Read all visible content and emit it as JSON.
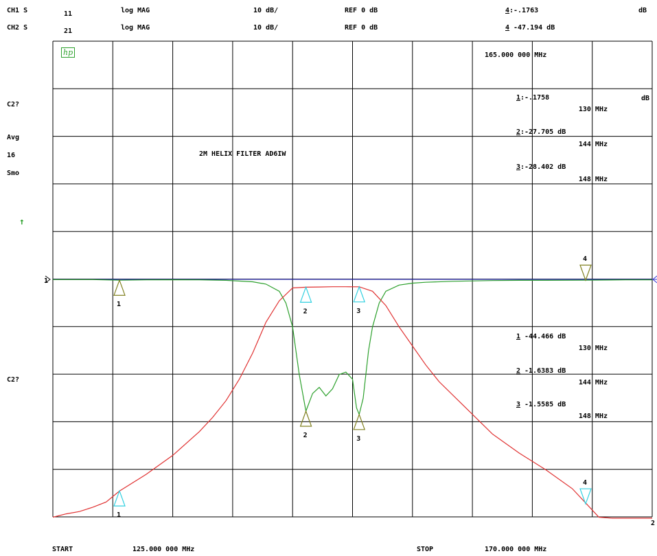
{
  "header": {
    "ch1_label": "CH1 S",
    "ch1_param": "11",
    "ch1_format": "log MAG",
    "ch1_scale": "10 dB/",
    "ch1_ref": "REF 0 dB",
    "ch1_marker_num": "4",
    "ch1_marker_val": ":-.1763",
    "ch1_unit": "dB",
    "ch2_label": "CH2 S",
    "ch2_param": "21",
    "ch2_format": "log MAG",
    "ch2_scale": "10 dB/",
    "ch2_ref": "REF 0 dB",
    "ch2_marker_num": "4",
    "ch2_marker_val": " -47.194 dB"
  },
  "left": {
    "c2q_top": "C2?",
    "avg": "Avg",
    "avg_n": "16",
    "smo": "Smo",
    "arrow": "↑",
    "c2q_bottom": "C2?"
  },
  "logo": "hp",
  "annotations": {
    "marker4_freq": "165.000 000 MHz",
    "title": "2M HELIX FILTER AD6IW",
    "dB_right": "dB",
    "ch1_m1_num": "1",
    "ch1_m1_val": ":-.1758",
    "ch1_m1_freq": "130 MHz",
    "ch1_m2_num": "2",
    "ch1_m2_val": ":-27.705 dB",
    "ch1_m2_freq": "144 MHz",
    "ch1_m3_num": "3",
    "ch1_m3_val": ":-28.402 dB",
    "ch1_m3_freq": "148 MHz",
    "ch2_m1_num": "1",
    "ch2_m1_val": " -44.466 dB",
    "ch2_m1_freq": "130 MHz",
    "ch2_m2_num": "2",
    "ch2_m2_val": " -1.6383 dB",
    "ch2_m2_freq": "144 MHz",
    "ch2_m3_num": "3",
    "ch2_m3_val": " -1.5585 dB",
    "ch2_m3_freq": "148 MHz"
  },
  "footer": {
    "start_label": "START",
    "start_value": "125.000 000 MHz",
    "stop_label": "STOP",
    "stop_value": "170.000 000 MHz"
  },
  "colors": {
    "grid": "#000000",
    "s11": "#2ca02c",
    "s21": "#e03030",
    "ref_line": "#3030d0",
    "marker_s11": "#808020",
    "marker_s21": "#30d0e0",
    "logo": "#2ca02c"
  },
  "chart_data": {
    "type": "line",
    "title": "2M HELIX FILTER AD6IW",
    "xlim": [
      125,
      170
    ],
    "ylim": [
      -50,
      0
    ],
    "x_divisions": 10,
    "y_divisions": 10,
    "reference_level_dB": 0,
    "series": [
      {
        "name": "S11",
        "x": [
          125,
          128,
          130,
          132,
          134,
          136,
          138,
          140,
          141,
          142,
          142.5,
          143,
          143.5,
          144,
          144.5,
          145,
          145.5,
          146,
          146.5,
          147,
          147.5,
          147.8,
          148,
          148.3,
          148.7,
          149,
          149.5,
          150,
          151,
          152,
          153,
          155,
          158,
          160,
          162,
          165,
          168,
          170
        ],
        "values": [
          -0.05,
          -0.05,
          -0.18,
          -0.1,
          -0.08,
          -0.1,
          -0.2,
          -0.5,
          -1.0,
          -2.5,
          -5,
          -10,
          -20,
          -27.7,
          -24,
          -22.7,
          -24.5,
          -23,
          -20,
          -19.5,
          -21,
          -27,
          -28.4,
          -25,
          -15,
          -10,
          -5,
          -2.5,
          -1.2,
          -0.8,
          -0.6,
          -0.4,
          -0.25,
          -0.2,
          -0.2,
          -0.18,
          -0.1,
          -0.1
        ]
      },
      {
        "name": "S21",
        "x": [
          125,
          126,
          127,
          128,
          129,
          130,
          132,
          134,
          136,
          137,
          138,
          139,
          140,
          141,
          142,
          143,
          144,
          145,
          146,
          147,
          148,
          149,
          150,
          151,
          152,
          153,
          154,
          156,
          158,
          160,
          162,
          164,
          165,
          166,
          167,
          168,
          170
        ],
        "values": [
          -50,
          -49.3,
          -48.8,
          -47.9,
          -46.8,
          -44.5,
          -41,
          -37,
          -32,
          -29,
          -25.5,
          -21,
          -15.5,
          -9,
          -4.5,
          -1.8,
          -1.64,
          -1.6,
          -1.55,
          -1.55,
          -1.56,
          -2.5,
          -5.5,
          -10,
          -14,
          -18,
          -21.5,
          -27,
          -32.5,
          -36.5,
          -40,
          -44,
          -47,
          -50,
          -50.2,
          -50.2,
          -50.2
        ]
      }
    ],
    "markers": {
      "S11": [
        {
          "n": 1,
          "x": 130,
          "y": -0.1758
        },
        {
          "n": 2,
          "x": 144,
          "y": -27.705
        },
        {
          "n": 3,
          "x": 148,
          "y": -28.402
        },
        {
          "n": 4,
          "x": 165,
          "y": -0.1763
        }
      ],
      "S21": [
        {
          "n": 1,
          "x": 130,
          "y": -44.466
        },
        {
          "n": 2,
          "x": 144,
          "y": -1.6383
        },
        {
          "n": 3,
          "x": 148,
          "y": -1.5585
        },
        {
          "n": 4,
          "x": 165,
          "y": -47.194
        }
      ]
    }
  }
}
